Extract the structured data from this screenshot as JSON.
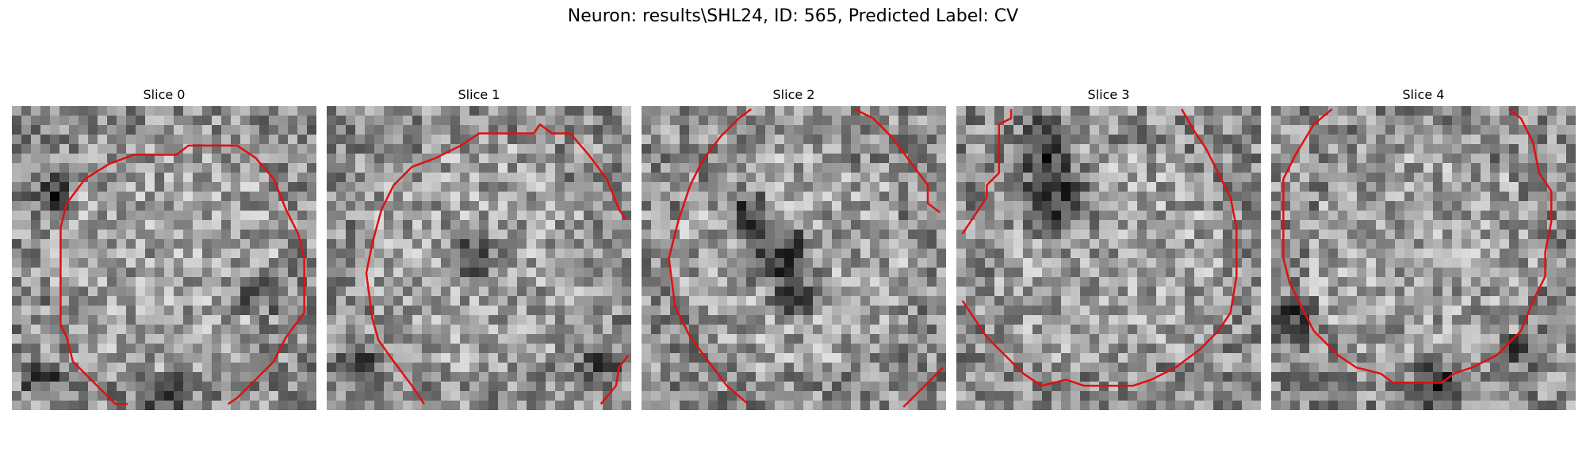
{
  "figure": {
    "title": "Neuron: results\\SHL24, ID: 565, Predicted Label: CV"
  },
  "slices": [
    {
      "title": "Slice 0",
      "dark_spots": [
        [
          0.14,
          0.28,
          0.08
        ],
        [
          0.1,
          0.9,
          0.08
        ],
        [
          0.8,
          0.62,
          0.09
        ],
        [
          0.5,
          0.95,
          0.1
        ]
      ],
      "contours": [
        [
          [
            0.38,
            0.98
          ],
          [
            0.34,
            0.98
          ],
          [
            0.28,
            0.92
          ],
          [
            0.2,
            0.84
          ],
          [
            0.18,
            0.76
          ],
          [
            0.16,
            0.72
          ],
          [
            0.16,
            0.55
          ],
          [
            0.16,
            0.4
          ],
          [
            0.18,
            0.32
          ],
          [
            0.24,
            0.24
          ],
          [
            0.32,
            0.19
          ],
          [
            0.4,
            0.16
          ],
          [
            0.54,
            0.16
          ],
          [
            0.58,
            0.13
          ],
          [
            0.74,
            0.13
          ],
          [
            0.8,
            0.17
          ],
          [
            0.86,
            0.24
          ],
          [
            0.9,
            0.34
          ],
          [
            0.94,
            0.42
          ],
          [
            0.96,
            0.5
          ],
          [
            0.96,
            0.68
          ],
          [
            0.9,
            0.76
          ],
          [
            0.86,
            0.84
          ],
          [
            0.8,
            0.9
          ],
          [
            0.74,
            0.96
          ],
          [
            0.71,
            0.98
          ]
        ]
      ]
    },
    {
      "title": "Slice 1",
      "dark_spots": [
        [
          0.1,
          0.85,
          0.09
        ],
        [
          0.48,
          0.5,
          0.12
        ],
        [
          0.9,
          0.85,
          0.08
        ]
      ],
      "contours": [
        [
          [
            0.32,
            0.98
          ],
          [
            0.28,
            0.92
          ],
          [
            0.22,
            0.84
          ],
          [
            0.17,
            0.77
          ],
          [
            0.15,
            0.7
          ],
          [
            0.13,
            0.55
          ],
          [
            0.15,
            0.45
          ],
          [
            0.18,
            0.34
          ],
          [
            0.22,
            0.26
          ],
          [
            0.28,
            0.2
          ],
          [
            0.36,
            0.17
          ],
          [
            0.44,
            0.13
          ],
          [
            0.5,
            0.09
          ],
          [
            0.68,
            0.09
          ],
          [
            0.7,
            0.06
          ],
          [
            0.74,
            0.09
          ],
          [
            0.8,
            0.09
          ],
          [
            0.86,
            0.16
          ],
          [
            0.92,
            0.24
          ],
          [
            0.96,
            0.34
          ],
          [
            0.98,
            0.37
          ]
        ],
        [
          [
            0.9,
            0.98
          ],
          [
            0.95,
            0.92
          ],
          [
            0.96,
            0.86
          ],
          [
            0.99,
            0.82
          ]
        ]
      ]
    },
    {
      "title": "Slice 2",
      "dark_spots": [
        [
          0.45,
          0.48,
          0.16
        ],
        [
          0.5,
          0.62,
          0.1
        ],
        [
          0.35,
          0.35,
          0.1
        ]
      ],
      "contours": [
        [
          [
            0.35,
            0.98
          ],
          [
            0.28,
            0.92
          ],
          [
            0.22,
            0.84
          ],
          [
            0.16,
            0.76
          ],
          [
            0.11,
            0.66
          ],
          [
            0.09,
            0.5
          ],
          [
            0.12,
            0.38
          ],
          [
            0.16,
            0.26
          ],
          [
            0.2,
            0.18
          ],
          [
            0.26,
            0.1
          ],
          [
            0.32,
            0.04
          ],
          [
            0.36,
            0.01
          ]
        ],
        [
          [
            0.7,
            0.01
          ],
          [
            0.76,
            0.04
          ],
          [
            0.82,
            0.1
          ],
          [
            0.88,
            0.18
          ],
          [
            0.94,
            0.26
          ],
          [
            0.94,
            0.32
          ],
          [
            0.98,
            0.35
          ]
        ],
        [
          [
            0.86,
            0.99
          ],
          [
            0.99,
            0.86
          ]
        ]
      ]
    },
    {
      "title": "Slice 3",
      "dark_spots": [
        [
          0.32,
          0.3,
          0.18
        ],
        [
          0.3,
          0.12,
          0.12
        ]
      ],
      "contours": [
        [
          [
            0.02,
            0.42
          ],
          [
            0.06,
            0.36
          ],
          [
            0.1,
            0.3
          ],
          [
            0.1,
            0.26
          ],
          [
            0.14,
            0.22
          ],
          [
            0.14,
            0.06
          ],
          [
            0.18,
            0.04
          ],
          [
            0.18,
            0.01
          ]
        ],
        [
          [
            0.02,
            0.64
          ],
          [
            0.06,
            0.7
          ],
          [
            0.1,
            0.76
          ],
          [
            0.16,
            0.82
          ],
          [
            0.22,
            0.88
          ],
          [
            0.28,
            0.92
          ],
          [
            0.36,
            0.9
          ],
          [
            0.42,
            0.92
          ],
          [
            0.58,
            0.92
          ],
          [
            0.64,
            0.9
          ],
          [
            0.72,
            0.86
          ],
          [
            0.8,
            0.8
          ],
          [
            0.86,
            0.74
          ],
          [
            0.9,
            0.68
          ],
          [
            0.92,
            0.56
          ],
          [
            0.92,
            0.4
          ],
          [
            0.9,
            0.3
          ],
          [
            0.86,
            0.22
          ],
          [
            0.82,
            0.14
          ],
          [
            0.78,
            0.08
          ],
          [
            0.74,
            0.01
          ]
        ]
      ]
    },
    {
      "title": "Slice 4",
      "dark_spots": [
        [
          0.05,
          0.7,
          0.1
        ],
        [
          0.55,
          0.9,
          0.12
        ],
        [
          0.82,
          0.8,
          0.08
        ]
      ],
      "contours": [
        [
          [
            0.2,
            0.01
          ],
          [
            0.14,
            0.06
          ],
          [
            0.08,
            0.16
          ],
          [
            0.04,
            0.24
          ],
          [
            0.04,
            0.5
          ],
          [
            0.06,
            0.58
          ],
          [
            0.1,
            0.66
          ],
          [
            0.14,
            0.74
          ],
          [
            0.22,
            0.82
          ],
          [
            0.28,
            0.86
          ],
          [
            0.36,
            0.88
          ],
          [
            0.4,
            0.91
          ],
          [
            0.56,
            0.91
          ],
          [
            0.6,
            0.88
          ],
          [
            0.66,
            0.86
          ],
          [
            0.74,
            0.82
          ],
          [
            0.82,
            0.74
          ],
          [
            0.86,
            0.64
          ],
          [
            0.9,
            0.56
          ],
          [
            0.9,
            0.48
          ],
          [
            0.92,
            0.38
          ],
          [
            0.92,
            0.28
          ],
          [
            0.88,
            0.22
          ],
          [
            0.86,
            0.12
          ],
          [
            0.82,
            0.04
          ],
          [
            0.78,
            0.01
          ]
        ]
      ]
    }
  ],
  "colors": {
    "contour": "#e01010"
  }
}
